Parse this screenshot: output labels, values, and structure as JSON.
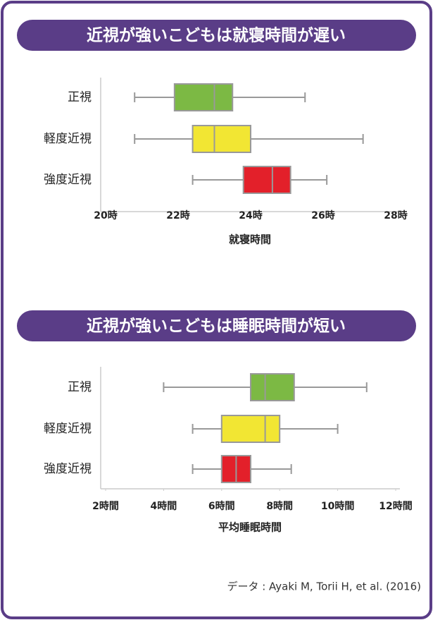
{
  "chart_data": [
    {
      "type": "box",
      "title": "近視が強いこどもは就寝時間が遅い",
      "xlabel": "就寝時間",
      "categories": [
        "正視",
        "軽度近視",
        "強度近視"
      ],
      "boxes": [
        {
          "min": 20.8,
          "q1": 21.9,
          "median": 23.0,
          "q3": 23.5,
          "max": 25.5,
          "color": "#7cb944"
        },
        {
          "min": 20.8,
          "q1": 22.4,
          "median": 23.0,
          "q3": 24.0,
          "max": 27.1,
          "color": "#f2e633"
        },
        {
          "min": 22.4,
          "q1": 23.8,
          "median": 24.6,
          "q3": 25.1,
          "max": 26.1,
          "color": "#e3202a"
        }
      ],
      "xlim": [
        20,
        28
      ],
      "xticks": [
        {
          "value": 20,
          "label": "20時"
        },
        {
          "value": 22,
          "label": "22時"
        },
        {
          "value": 24,
          "label": "24時"
        },
        {
          "value": 26,
          "label": "26時"
        },
        {
          "value": 28,
          "label": "28時"
        }
      ]
    },
    {
      "type": "box",
      "title": "近視が強いこどもは睡眠時間が短い",
      "xlabel": "平均睡眠時間",
      "categories": [
        "正視",
        "軽度近視",
        "強度近視"
      ],
      "boxes": [
        {
          "min": 4.0,
          "q1": 7.0,
          "median": 7.5,
          "q3": 8.5,
          "max": 11.0,
          "color": "#7cb944"
        },
        {
          "min": 5.0,
          "q1": 6.0,
          "median": 7.5,
          "q3": 8.0,
          "max": 10.0,
          "color": "#f2e633"
        },
        {
          "min": 5.0,
          "q1": 6.0,
          "median": 6.5,
          "q3": 7.0,
          "max": 8.4,
          "color": "#e3202a"
        }
      ],
      "xlim": [
        2,
        12
      ],
      "xticks": [
        {
          "value": 2,
          "label": "2時間"
        },
        {
          "value": 4,
          "label": "4時間"
        },
        {
          "value": 6,
          "label": "6時間"
        },
        {
          "value": 8,
          "label": "8時間"
        },
        {
          "value": 10,
          "label": "10時間"
        },
        {
          "value": 12,
          "label": "12時間"
        }
      ]
    }
  ],
  "source": "データ : Ayaki M, Torii H, et al. (2016)"
}
